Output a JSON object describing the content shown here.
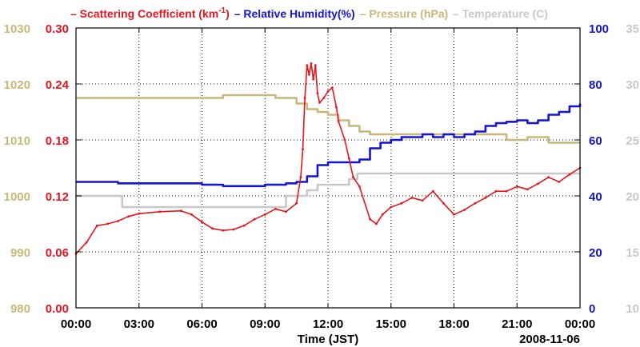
{
  "chart_data": {
    "type": "line",
    "date_label": "2008-11-06",
    "xlabel": "Time (JST)",
    "x_ticks": [
      "00:00",
      "03:00",
      "06:00",
      "09:00",
      "12:00",
      "15:00",
      "18:00",
      "21:00",
      "00:00"
    ],
    "x_range_hours": [
      0,
      24
    ],
    "axes": [
      {
        "id": "pressure",
        "label": "Pressure (hPa)",
        "color": "#C8B878",
        "range": [
          980,
          1030
        ],
        "ticks": [
          980,
          990,
          1000,
          1010,
          1020,
          1030
        ]
      },
      {
        "id": "scattering",
        "label": "Scattering Coefficient (km-1)",
        "color": "#E8141E",
        "range": [
          0,
          0.3
        ],
        "ticks": [
          "0.00",
          "0.06",
          "0.12",
          "0.18",
          "0.24",
          "0.30"
        ]
      },
      {
        "id": "humidity",
        "label": "Relative Humidity(%)",
        "color": "#1414D2",
        "range": [
          0,
          100
        ],
        "ticks": [
          0,
          20,
          40,
          60,
          80,
          100
        ]
      },
      {
        "id": "temperature",
        "label": "Temperature (C)",
        "color": "#C8C8C8",
        "range": [
          10,
          35
        ],
        "ticks": [
          10,
          15,
          20,
          25,
          30,
          35
        ]
      }
    ],
    "legend": {
      "scattering_prefix": "– Scattering Coefficient (km",
      "scattering_sup": "-1",
      "scattering_suffix": ")",
      "humidity": "– Relative Humidity(%)",
      "pressure": "– Pressure (hPa)",
      "temperature": "– Temperature (C)"
    },
    "series": [
      {
        "name": "Scattering Coefficient",
        "axis": "scattering",
        "color": "#E8141E",
        "x": [
          0,
          0.5,
          1,
          1.5,
          2,
          2.5,
          3,
          4,
          5,
          5.5,
          6,
          6.5,
          7,
          7.5,
          8,
          8.5,
          9,
          9.5,
          10,
          10.5,
          10.7,
          10.8,
          10.9,
          11,
          11.1,
          11.2,
          11.3,
          11.4,
          11.5,
          11.6,
          11.8,
          12,
          12.2,
          12.4,
          12.5,
          12.8,
          13,
          13.2,
          13.5,
          14,
          14.3,
          14.6,
          15,
          15.5,
          16,
          16.5,
          17,
          17.5,
          18,
          18.5,
          19,
          19.5,
          20,
          20.5,
          21,
          21.5,
          22,
          22.5,
          23,
          23.5,
          24
        ],
        "values": [
          0.058,
          0.07,
          0.088,
          0.09,
          0.093,
          0.098,
          0.101,
          0.103,
          0.104,
          0.1,
          0.092,
          0.085,
          0.083,
          0.084,
          0.088,
          0.095,
          0.1,
          0.106,
          0.103,
          0.112,
          0.14,
          0.17,
          0.225,
          0.26,
          0.25,
          0.262,
          0.245,
          0.26,
          0.23,
          0.22,
          0.225,
          0.232,
          0.236,
          0.215,
          0.2,
          0.18,
          0.16,
          0.14,
          0.13,
          0.095,
          0.09,
          0.1,
          0.108,
          0.112,
          0.118,
          0.115,
          0.125,
          0.112,
          0.1,
          0.105,
          0.112,
          0.118,
          0.125,
          0.125,
          0.13,
          0.127,
          0.133,
          0.14,
          0.135,
          0.143,
          0.15
        ]
      },
      {
        "name": "Relative Humidity",
        "axis": "humidity",
        "color": "#1414D2",
        "step": true,
        "x": [
          0,
          1.5,
          2,
          4,
          6,
          7,
          8,
          9,
          10,
          10.5,
          11,
          11.5,
          12,
          12.5,
          13,
          13.5,
          14,
          14.5,
          15,
          15.5,
          16,
          16.5,
          17,
          17.5,
          18,
          18.5,
          19,
          19.5,
          20,
          20.5,
          21,
          21.5,
          22,
          22.5,
          23,
          23.5,
          24
        ],
        "values": [
          45,
          45,
          44.5,
          44.5,
          44,
          43.5,
          43.5,
          44,
          44.5,
          45,
          47,
          51,
          52,
          52,
          52,
          53,
          57,
          59,
          60,
          61,
          61,
          62,
          61,
          62,
          61,
          62,
          63,
          65,
          66,
          66.5,
          67,
          66,
          67,
          69,
          70,
          72,
          73
        ]
      },
      {
        "name": "Pressure",
        "axis": "pressure",
        "color": "#C8B878",
        "step": true,
        "x": [
          0,
          6.5,
          7,
          9.5,
          10.5,
          11,
          11.5,
          12,
          12.5,
          13,
          13.5,
          14,
          15,
          16,
          17,
          18,
          19,
          20,
          20.5,
          21,
          21.5,
          22.5,
          24
        ],
        "values": [
          1017.5,
          1017.5,
          1018,
          1017.5,
          1016.5,
          1015.5,
          1015,
          1014.5,
          1013.5,
          1012.5,
          1011.5,
          1011,
          1011,
          1011,
          1011,
          1011,
          1011,
          1011,
          1010,
          1010,
          1010.5,
          1009.5,
          1009.5
        ]
      },
      {
        "name": "Temperature",
        "axis": "temperature",
        "color": "#C8C8C8",
        "step": true,
        "x": [
          0,
          2,
          2.2,
          9.8,
          10,
          11,
          11.5,
          12,
          12.5,
          13,
          13.4,
          24
        ],
        "values": [
          20,
          20,
          19,
          19,
          20,
          20.5,
          21,
          21,
          21,
          21.5,
          22,
          22
        ]
      }
    ]
  }
}
